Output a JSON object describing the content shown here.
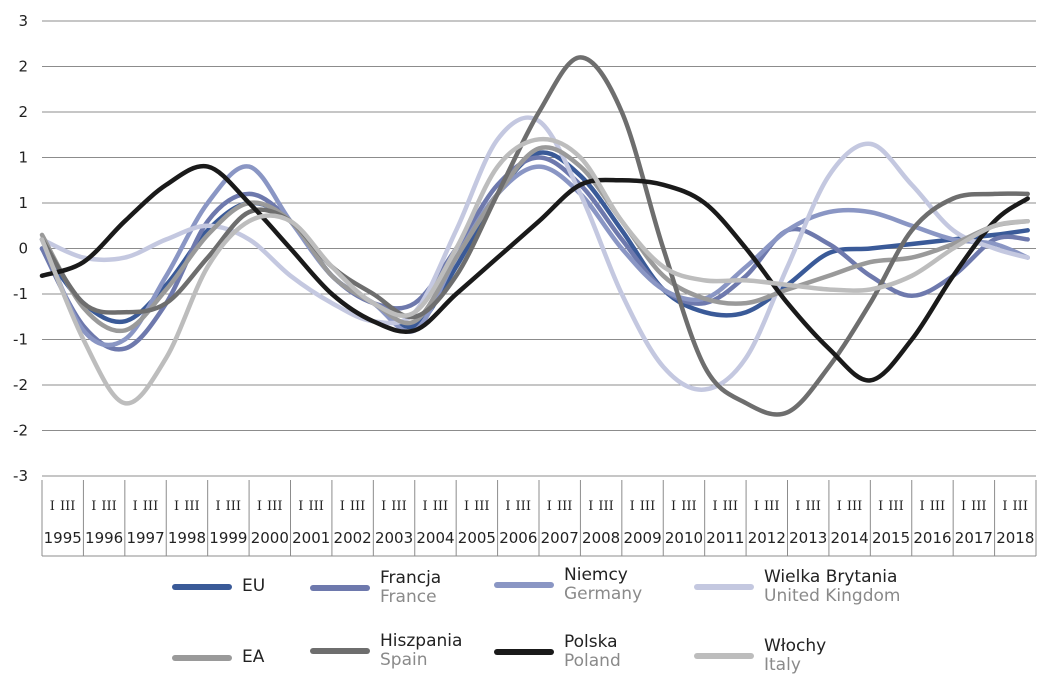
{
  "chart_data": {
    "type": "line",
    "title": "",
    "xlabel": "",
    "ylabel": "",
    "y_tick_labels": [
      "3",
      "2",
      "2",
      "1",
      "1",
      "0",
      "-1",
      "-1",
      "-2",
      "-2",
      "-3"
    ],
    "y_ticks": [
      2.5,
      2.0,
      1.5,
      1.0,
      0.5,
      0.0,
      -0.5,
      -1.0,
      -1.5,
      -2.0,
      -2.5
    ],
    "ylim": [
      -2.5,
      2.5
    ],
    "years": [
      "1995",
      "1996",
      "1997",
      "1998",
      "1999",
      "2000",
      "2001",
      "2002",
      "2003",
      "2004",
      "2005",
      "2006",
      "2007",
      "2008",
      "2009",
      "2010",
      "2011",
      "2012",
      "2013",
      "2014",
      "2015",
      "2016",
      "2017",
      "2018"
    ],
    "quarter_labels": [
      "I",
      "III"
    ],
    "grid": "horizontal",
    "legend_position": "bottom",
    "series": [
      {
        "name": "EU",
        "legend_pl": "EU",
        "legend_en": "",
        "color": "#3a5a98",
        "points": [
          [
            1995.0,
            0.0
          ],
          [
            1996.0,
            -0.6
          ],
          [
            1997.0,
            -0.8
          ],
          [
            1998.0,
            -0.4
          ],
          [
            1999.0,
            0.2
          ],
          [
            2000.0,
            0.5
          ],
          [
            2001.0,
            0.3
          ],
          [
            2002.0,
            -0.3
          ],
          [
            2003.0,
            -0.6
          ],
          [
            2004.0,
            -0.85
          ],
          [
            2005.0,
            -0.2
          ],
          [
            2006.0,
            0.6
          ],
          [
            2007.0,
            1.05
          ],
          [
            2008.0,
            0.8
          ],
          [
            2009.0,
            0.2
          ],
          [
            2010.0,
            -0.45
          ],
          [
            2011.0,
            -0.7
          ],
          [
            2012.0,
            -0.7
          ],
          [
            2013.0,
            -0.4
          ],
          [
            2014.0,
            -0.05
          ],
          [
            2015.0,
            0.0
          ],
          [
            2016.0,
            0.05
          ],
          [
            2017.0,
            0.1
          ],
          [
            2018.0,
            0.15
          ],
          [
            2018.8,
            0.2
          ]
        ]
      },
      {
        "name": "Francja",
        "legend_pl": "Francja",
        "legend_en": "France",
        "color": "#6e79ad",
        "points": [
          [
            1995.0,
            0.0
          ],
          [
            1996.0,
            -0.85
          ],
          [
            1997.0,
            -1.1
          ],
          [
            1998.0,
            -0.6
          ],
          [
            1999.0,
            0.3
          ],
          [
            2000.0,
            0.6
          ],
          [
            2001.0,
            0.3
          ],
          [
            2002.0,
            -0.3
          ],
          [
            2003.0,
            -0.6
          ],
          [
            2004.0,
            -0.6
          ],
          [
            2005.0,
            0.0
          ],
          [
            2006.0,
            0.7
          ],
          [
            2007.0,
            1.0
          ],
          [
            2008.0,
            0.7
          ],
          [
            2009.0,
            0.1
          ],
          [
            2010.0,
            -0.45
          ],
          [
            2011.0,
            -0.6
          ],
          [
            2012.0,
            -0.3
          ],
          [
            2013.0,
            0.2
          ],
          [
            2014.0,
            0.05
          ],
          [
            2015.0,
            -0.3
          ],
          [
            2016.0,
            -0.52
          ],
          [
            2017.0,
            -0.3
          ],
          [
            2018.0,
            0.1
          ],
          [
            2018.8,
            0.1
          ]
        ]
      },
      {
        "name": "Niemcy",
        "legend_pl": "Niemcy",
        "legend_en": "Germany",
        "color": "#8a96c4",
        "points": [
          [
            1995.0,
            0.1
          ],
          [
            1996.0,
            -0.9
          ],
          [
            1997.0,
            -1.0
          ],
          [
            1998.0,
            -0.3
          ],
          [
            1999.0,
            0.5
          ],
          [
            2000.0,
            0.9
          ],
          [
            2001.0,
            0.3
          ],
          [
            2002.0,
            -0.3
          ],
          [
            2003.0,
            -0.6
          ],
          [
            2004.0,
            -0.9
          ],
          [
            2005.0,
            -0.1
          ],
          [
            2006.0,
            0.6
          ],
          [
            2007.0,
            0.9
          ],
          [
            2008.0,
            0.6
          ],
          [
            2009.0,
            0.0
          ],
          [
            2010.0,
            -0.45
          ],
          [
            2011.0,
            -0.55
          ],
          [
            2012.0,
            -0.2
          ],
          [
            2013.0,
            0.2
          ],
          [
            2014.0,
            0.4
          ],
          [
            2015.0,
            0.4
          ],
          [
            2016.0,
            0.25
          ],
          [
            2017.0,
            0.1
          ],
          [
            2018.0,
            0.05
          ],
          [
            2018.8,
            -0.1
          ]
        ]
      },
      {
        "name": "Wielka Brytania",
        "legend_pl": "Wielka Brytania",
        "legend_en": "United Kingdom",
        "color": "#c4c8e0",
        "points": [
          [
            1995.0,
            0.1
          ],
          [
            1996.0,
            -0.1
          ],
          [
            1997.0,
            -0.1
          ],
          [
            1998.0,
            0.1
          ],
          [
            1999.0,
            0.25
          ],
          [
            2000.0,
            0.1
          ],
          [
            2001.0,
            -0.3
          ],
          [
            2002.0,
            -0.6
          ],
          [
            2003.0,
            -0.8
          ],
          [
            2004.0,
            -0.7
          ],
          [
            2005.0,
            0.2
          ],
          [
            2006.0,
            1.2
          ],
          [
            2007.0,
            1.4
          ],
          [
            2008.0,
            0.6
          ],
          [
            2009.0,
            -0.5
          ],
          [
            2010.0,
            -1.3
          ],
          [
            2011.0,
            -1.55
          ],
          [
            2012.0,
            -1.2
          ],
          [
            2013.0,
            -0.2
          ],
          [
            2014.0,
            0.8
          ],
          [
            2015.0,
            1.15
          ],
          [
            2016.0,
            0.7
          ],
          [
            2017.0,
            0.2
          ],
          [
            2018.0,
            0.0
          ],
          [
            2018.8,
            -0.1
          ]
        ]
      },
      {
        "name": "EA",
        "legend_pl": "EA",
        "legend_en": "",
        "color": "#9a9a9a",
        "points": [
          [
            1995.0,
            0.15
          ],
          [
            1996.0,
            -0.65
          ],
          [
            1997.0,
            -0.9
          ],
          [
            1998.0,
            -0.45
          ],
          [
            1999.0,
            0.15
          ],
          [
            2000.0,
            0.5
          ],
          [
            2001.0,
            0.3
          ],
          [
            2002.0,
            -0.3
          ],
          [
            2003.0,
            -0.6
          ],
          [
            2004.0,
            -0.8
          ],
          [
            2005.0,
            -0.1
          ],
          [
            2006.0,
            0.6
          ],
          [
            2007.0,
            1.1
          ],
          [
            2008.0,
            0.9
          ],
          [
            2009.0,
            0.3
          ],
          [
            2010.0,
            -0.3
          ],
          [
            2011.0,
            -0.55
          ],
          [
            2012.0,
            -0.6
          ],
          [
            2013.0,
            -0.45
          ],
          [
            2014.0,
            -0.3
          ],
          [
            2015.0,
            -0.15
          ],
          [
            2016.0,
            -0.1
          ],
          [
            2017.0,
            0.05
          ],
          [
            2018.0,
            0.25
          ],
          [
            2018.8,
            0.3
          ]
        ]
      },
      {
        "name": "Hiszpania",
        "legend_pl": "Hiszpania",
        "legend_en": "Spain",
        "color": "#6e6e6e",
        "points": [
          [
            1995.0,
            0.1
          ],
          [
            1996.0,
            -0.6
          ],
          [
            1997.0,
            -0.7
          ],
          [
            1998.0,
            -0.6
          ],
          [
            1999.0,
            -0.1
          ],
          [
            2000.0,
            0.4
          ],
          [
            2001.0,
            0.3
          ],
          [
            2002.0,
            -0.2
          ],
          [
            2003.0,
            -0.5
          ],
          [
            2004.0,
            -0.75
          ],
          [
            2005.0,
            -0.3
          ],
          [
            2006.0,
            0.6
          ],
          [
            2007.0,
            1.5
          ],
          [
            2008.0,
            2.1
          ],
          [
            2009.0,
            1.5
          ],
          [
            2010.0,
            0.0
          ],
          [
            2011.0,
            -1.3
          ],
          [
            2012.0,
            -1.7
          ],
          [
            2013.0,
            -1.8
          ],
          [
            2014.0,
            -1.3
          ],
          [
            2015.0,
            -0.6
          ],
          [
            2016.0,
            0.2
          ],
          [
            2017.0,
            0.55
          ],
          [
            2018.0,
            0.6
          ],
          [
            2018.8,
            0.6
          ]
        ]
      },
      {
        "name": "Polska",
        "legend_pl": "Polska",
        "legend_en": "Poland",
        "color": "#1a1a1a",
        "points": [
          [
            1995.0,
            -0.3
          ],
          [
            1996.0,
            -0.15
          ],
          [
            1997.0,
            0.3
          ],
          [
            1998.0,
            0.7
          ],
          [
            1999.0,
            0.9
          ],
          [
            2000.0,
            0.5
          ],
          [
            2001.0,
            0.0
          ],
          [
            2002.0,
            -0.5
          ],
          [
            2003.0,
            -0.8
          ],
          [
            2004.0,
            -0.9
          ],
          [
            2005.0,
            -0.5
          ],
          [
            2006.0,
            -0.1
          ],
          [
            2007.0,
            0.3
          ],
          [
            2008.0,
            0.7
          ],
          [
            2009.0,
            0.75
          ],
          [
            2010.0,
            0.7
          ],
          [
            2011.0,
            0.5
          ],
          [
            2012.0,
            0.0
          ],
          [
            2013.0,
            -0.6
          ],
          [
            2014.0,
            -1.1
          ],
          [
            2015.0,
            -1.45
          ],
          [
            2016.0,
            -1.0
          ],
          [
            2017.0,
            -0.3
          ],
          [
            2018.0,
            0.3
          ],
          [
            2018.8,
            0.55
          ]
        ]
      },
      {
        "name": "Włochy",
        "legend_pl": "Włochy",
        "legend_en": "Italy",
        "color": "#bdbdbd",
        "points": [
          [
            1995.0,
            0.1
          ],
          [
            1996.0,
            -1.0
          ],
          [
            1997.0,
            -1.7
          ],
          [
            1998.0,
            -1.2
          ],
          [
            1999.0,
            -0.2
          ],
          [
            2000.0,
            0.3
          ],
          [
            2001.0,
            0.3
          ],
          [
            2002.0,
            -0.2
          ],
          [
            2003.0,
            -0.6
          ],
          [
            2004.0,
            -0.7
          ],
          [
            2005.0,
            0.0
          ],
          [
            2006.0,
            0.9
          ],
          [
            2007.0,
            1.2
          ],
          [
            2008.0,
            1.0
          ],
          [
            2009.0,
            0.3
          ],
          [
            2010.0,
            -0.2
          ],
          [
            2011.0,
            -0.35
          ],
          [
            2012.0,
            -0.35
          ],
          [
            2013.0,
            -0.4
          ],
          [
            2014.0,
            -0.45
          ],
          [
            2015.0,
            -0.45
          ],
          [
            2016.0,
            -0.3
          ],
          [
            2017.0,
            0.0
          ],
          [
            2018.0,
            0.25
          ],
          [
            2018.8,
            0.3
          ]
        ]
      }
    ]
  }
}
